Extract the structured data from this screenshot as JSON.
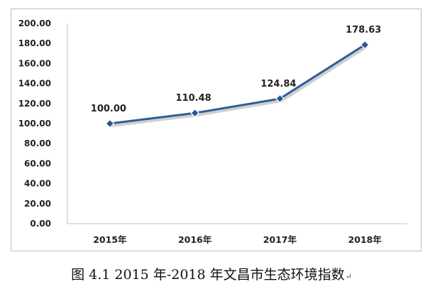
{
  "chart_data": {
    "type": "line",
    "categories": [
      "2015年",
      "2016年",
      "2017年",
      "2018年"
    ],
    "series": [
      {
        "values": [
          100.0,
          110.48,
          124.84,
          178.63
        ]
      }
    ],
    "data_labels": [
      "100.00",
      "110.48",
      "124.84",
      "178.63"
    ],
    "y_ticks": [
      "0.00",
      "20.00",
      "40.00",
      "60.00",
      "80.00",
      "100.00",
      "120.00",
      "140.00",
      "160.00",
      "180.00",
      "200.00"
    ],
    "ylim": [
      0,
      200
    ],
    "grid": false,
    "legend": "none",
    "title": "",
    "xlabel": "",
    "ylabel": "",
    "colors": {
      "line": "#2f5b9a",
      "marker_fill": "#2c5591",
      "axis": "#c0c0c0"
    },
    "marker": "diamond"
  },
  "caption": {
    "text": "图 4.1 2015 年-2018 年文昌市生态环境指数",
    "mark": "↵"
  }
}
